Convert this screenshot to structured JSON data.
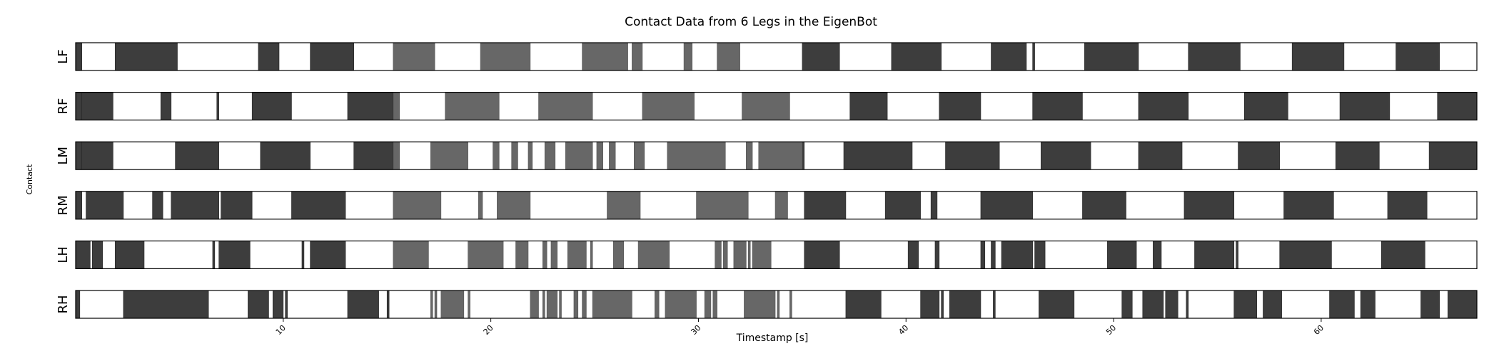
{
  "chart_data": {
    "type": "heatmap",
    "title": "Contact Data from 6 Legs in the EigenBot",
    "xlabel": "Timestamp [s]",
    "ylabel": "Contact",
    "xlim": [
      0,
      67.5
    ],
    "xticks": [
      10,
      20,
      30,
      40,
      50,
      60
    ],
    "colors": {
      "contact": "#3d3d3d",
      "no_contact": "#ffffff",
      "overlay_contact": "#545454",
      "overlay_no_contact": "#d7d7d7"
    },
    "shaded_interval": [
      15.3,
      35.0
    ],
    "legs": [
      {
        "name": "LF",
        "segments": [
          [
            0.0,
            0.3
          ],
          [
            1.9,
            4.9
          ],
          [
            8.8,
            9.8
          ],
          [
            11.3,
            13.4
          ],
          [
            15.3,
            17.3
          ],
          [
            19.5,
            21.9
          ],
          [
            24.4,
            26.6
          ],
          [
            26.8,
            27.3
          ],
          [
            29.3,
            29.7
          ],
          [
            30.9,
            32.0
          ],
          [
            35.0,
            36.8
          ],
          [
            39.3,
            41.7
          ],
          [
            44.1,
            45.8
          ],
          [
            46.1,
            46.2
          ],
          [
            48.6,
            51.2
          ],
          [
            53.6,
            56.1
          ],
          [
            58.6,
            61.1
          ],
          [
            63.6,
            65.7
          ]
        ]
      },
      {
        "name": "RF",
        "segments": [
          [
            0.0,
            0.3
          ],
          [
            0.3,
            1.8
          ],
          [
            4.1,
            4.6
          ],
          [
            6.8,
            6.9
          ],
          [
            8.5,
            10.4
          ],
          [
            13.1,
            15.3
          ],
          [
            15.3,
            15.6
          ],
          [
            17.8,
            20.4
          ],
          [
            22.3,
            24.9
          ],
          [
            27.3,
            29.8
          ],
          [
            32.1,
            34.4
          ],
          [
            37.3,
            39.1
          ],
          [
            41.6,
            43.6
          ],
          [
            46.1,
            48.5
          ],
          [
            51.2,
            53.6
          ],
          [
            56.3,
            58.4
          ],
          [
            60.9,
            63.3
          ],
          [
            65.6,
            67.5
          ]
        ]
      },
      {
        "name": "LM",
        "segments": [
          [
            0.0,
            0.3
          ],
          [
            0.3,
            1.8
          ],
          [
            4.8,
            6.9
          ],
          [
            8.9,
            11.3
          ],
          [
            13.4,
            15.3
          ],
          [
            15.3,
            15.6
          ],
          [
            17.1,
            18.9
          ],
          [
            20.1,
            20.4
          ],
          [
            21.0,
            21.3
          ],
          [
            21.8,
            22.0
          ],
          [
            22.6,
            23.1
          ],
          [
            23.6,
            24.9
          ],
          [
            25.1,
            25.4
          ],
          [
            25.7,
            26.0
          ],
          [
            26.9,
            27.4
          ],
          [
            28.5,
            31.3
          ],
          [
            32.3,
            32.6
          ],
          [
            32.9,
            35.1
          ],
          [
            37.0,
            40.3
          ],
          [
            41.9,
            44.5
          ],
          [
            46.5,
            48.9
          ],
          [
            51.2,
            53.3
          ],
          [
            56.0,
            58.0
          ],
          [
            60.7,
            62.8
          ],
          [
            65.2,
            67.5
          ]
        ]
      },
      {
        "name": "RM",
        "segments": [
          [
            0.0,
            0.3
          ],
          [
            0.5,
            2.3
          ],
          [
            3.7,
            4.2
          ],
          [
            4.6,
            6.9
          ],
          [
            7.0,
            8.5
          ],
          [
            10.4,
            13.0
          ],
          [
            15.3,
            17.6
          ],
          [
            19.4,
            19.6
          ],
          [
            20.3,
            21.9
          ],
          [
            25.6,
            27.2
          ],
          [
            29.9,
            32.4
          ],
          [
            33.7,
            34.3
          ],
          [
            35.1,
            37.1
          ],
          [
            39.0,
            40.7
          ],
          [
            41.2,
            41.5
          ],
          [
            43.6,
            46.1
          ],
          [
            48.5,
            50.6
          ],
          [
            53.4,
            55.8
          ],
          [
            58.2,
            60.6
          ],
          [
            63.2,
            65.1
          ]
        ]
      },
      {
        "name": "LH",
        "segments": [
          [
            0.0,
            0.7
          ],
          [
            0.8,
            1.3
          ],
          [
            1.9,
            3.3
          ],
          [
            6.6,
            6.7
          ],
          [
            6.9,
            8.4
          ],
          [
            10.9,
            11.0
          ],
          [
            11.3,
            13.0
          ],
          [
            15.3,
            17.0
          ],
          [
            18.9,
            20.6
          ],
          [
            21.2,
            21.8
          ],
          [
            22.5,
            22.7
          ],
          [
            22.9,
            23.2
          ],
          [
            23.7,
            24.6
          ],
          [
            24.8,
            24.9
          ],
          [
            25.9,
            26.4
          ],
          [
            27.1,
            28.6
          ],
          [
            30.8,
            31.1
          ],
          [
            31.2,
            31.4
          ],
          [
            31.7,
            32.3
          ],
          [
            32.4,
            32.5
          ],
          [
            32.6,
            33.5
          ],
          [
            35.1,
            36.8
          ],
          [
            40.1,
            40.6
          ],
          [
            41.4,
            41.6
          ],
          [
            43.6,
            43.8
          ],
          [
            44.1,
            44.3
          ],
          [
            44.6,
            46.1
          ],
          [
            46.2,
            46.7
          ],
          [
            49.7,
            51.1
          ],
          [
            51.9,
            52.3
          ],
          [
            53.9,
            55.8
          ],
          [
            55.9,
            56.0
          ],
          [
            58.0,
            60.5
          ],
          [
            62.9,
            65.0
          ]
        ]
      },
      {
        "name": "RH",
        "segments": [
          [
            0.0,
            0.2
          ],
          [
            2.3,
            6.4
          ],
          [
            8.3,
            9.3
          ],
          [
            9.5,
            10.0
          ],
          [
            10.1,
            10.2
          ],
          [
            13.1,
            14.6
          ],
          [
            15.0,
            15.1
          ],
          [
            17.1,
            17.2
          ],
          [
            17.3,
            17.4
          ],
          [
            17.6,
            18.7
          ],
          [
            18.9,
            19.0
          ],
          [
            21.9,
            22.3
          ],
          [
            22.5,
            22.6
          ],
          [
            22.7,
            23.2
          ],
          [
            23.3,
            23.4
          ],
          [
            24.0,
            24.2
          ],
          [
            24.4,
            24.6
          ],
          [
            24.9,
            26.8
          ],
          [
            27.9,
            28.1
          ],
          [
            28.4,
            29.9
          ],
          [
            30.3,
            30.6
          ],
          [
            30.7,
            30.9
          ],
          [
            32.2,
            33.7
          ],
          [
            33.8,
            33.9
          ],
          [
            34.4,
            34.5
          ],
          [
            37.1,
            38.8
          ],
          [
            40.7,
            41.6
          ],
          [
            41.7,
            41.8
          ],
          [
            42.1,
            43.6
          ],
          [
            44.2,
            44.3
          ],
          [
            46.4,
            48.1
          ],
          [
            50.4,
            50.9
          ],
          [
            51.4,
            52.4
          ],
          [
            52.5,
            53.1
          ],
          [
            53.5,
            53.6
          ],
          [
            55.8,
            56.9
          ],
          [
            57.2,
            58.1
          ],
          [
            60.4,
            61.6
          ],
          [
            61.9,
            62.6
          ],
          [
            64.8,
            65.7
          ],
          [
            66.1,
            67.5
          ]
        ]
      }
    ]
  }
}
